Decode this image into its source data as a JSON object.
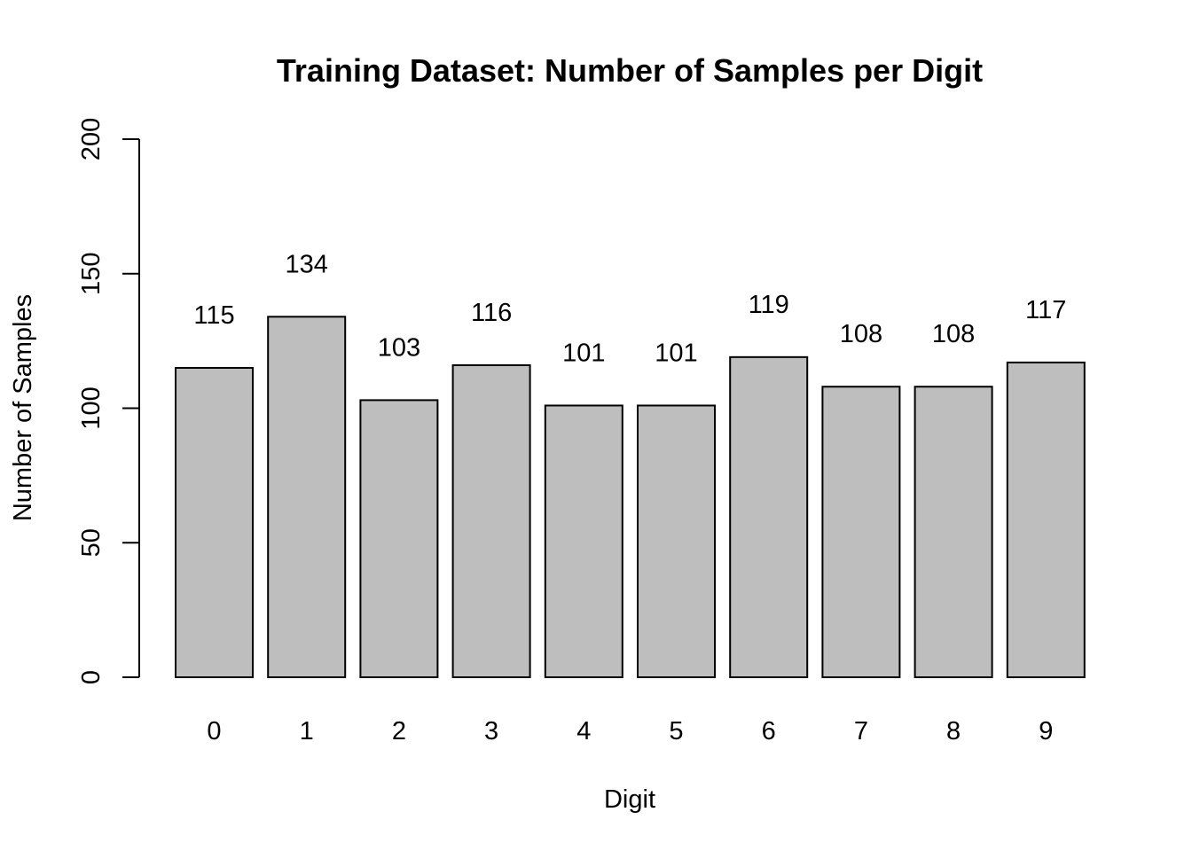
{
  "chart_data": {
    "type": "bar",
    "title": "Training Dataset: Number of Samples per Digit",
    "xlabel": "Digit",
    "ylabel": "Number of Samples",
    "categories": [
      "0",
      "1",
      "2",
      "3",
      "4",
      "5",
      "6",
      "7",
      "8",
      "9"
    ],
    "values": [
      115,
      134,
      103,
      116,
      101,
      101,
      119,
      108,
      108,
      117
    ],
    "data_labels": [
      "115",
      "134",
      "103",
      "116",
      "101",
      "101",
      "119",
      "108",
      "108",
      "117"
    ],
    "ylim": [
      0,
      200
    ],
    "yticks": [
      0,
      50,
      100,
      150,
      200
    ],
    "ytick_labels": [
      "0",
      "50",
      "100",
      "150",
      "200"
    ],
    "grid": false,
    "legend": "none",
    "bar_color": "#bebebe",
    "bar_border_color": "#000000"
  }
}
